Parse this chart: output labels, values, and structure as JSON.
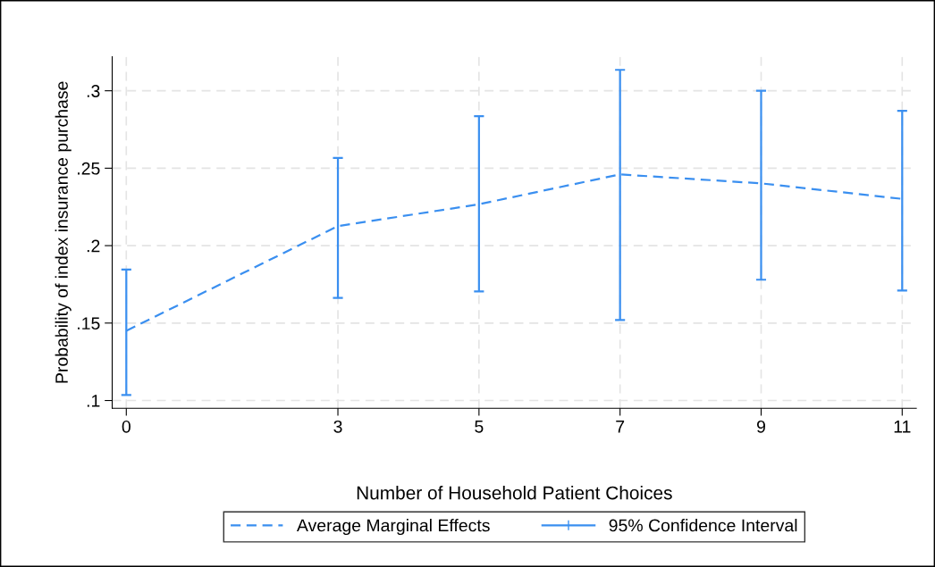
{
  "chart_data": {
    "type": "line",
    "xlabel": "Number of Household Patient Choices",
    "ylabel": "Probability of index insurance purchase",
    "x": [
      0,
      3,
      5,
      7,
      9,
      11
    ],
    "series": [
      {
        "name": "Average Marginal Effects",
        "color": "#3a8ff0",
        "line_style": "dashed",
        "values": [
          0.145,
          0.2126,
          0.2267,
          0.246,
          0.2402,
          0.2302
        ],
        "errors": [
          [
            0.1035,
            0.1845
          ],
          [
            0.1663,
            0.2566
          ],
          [
            0.1704,
            0.2836
          ],
          [
            0.152,
            0.3135
          ],
          [
            0.178,
            0.3
          ],
          [
            0.171,
            0.2871
          ]
        ]
      }
    ],
    "annotations": [
      "95% Confidence Interval"
    ],
    "xlim": [
      -0.2,
      11.2
    ],
    "xticks": [
      0,
      3,
      5,
      7,
      9,
      11
    ],
    "ylim": [
      0.095,
      0.322
    ],
    "yticks": [
      {
        "value": 0.1,
        "label": ".1"
      },
      {
        "value": 0.15,
        "label": ".15"
      },
      {
        "value": 0.2,
        "label": ".2"
      },
      {
        "value": 0.25,
        "label": ".25"
      },
      {
        "value": 0.3,
        "label": ".3"
      }
    ],
    "grid": true,
    "legend": "bottom"
  }
}
